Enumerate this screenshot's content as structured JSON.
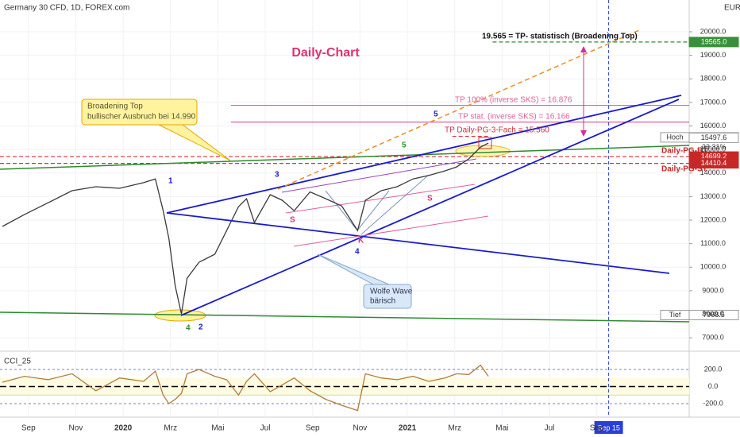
{
  "chart_data": [
    {
      "type": "line",
      "title": "Germany 30 CFD, 1D, FOREX.com",
      "currency": "EUR",
      "subtitle": "Daily-Chart",
      "x": [
        -0.1,
        0.83,
        1.84,
        2.84,
        3.85,
        4.85,
        5.86,
        6.36,
        6.69,
        6.93,
        7.2,
        7.46,
        7.7,
        8.2,
        8.87,
        9.37,
        9.87,
        10.21,
        10.54,
        11.21,
        11.72,
        12.22,
        12.89,
        13.56,
        14.23,
        14.9,
        15.23,
        15.9,
        16.57,
        17.24,
        17.91,
        18.58,
        19.08,
        19.59,
        20.09,
        20.42
      ],
      "values": [
        11730,
        12235,
        12740,
        13250,
        13420,
        13350,
        13590,
        13750,
        12400,
        11220,
        9200,
        8015,
        9530,
        10210,
        10550,
        11560,
        12570,
        12910,
        11900,
        13080,
        12840,
        12400,
        13200,
        12910,
        12600,
        11560,
        12840,
        13250,
        13420,
        13750,
        13900,
        14090,
        14260,
        14600,
        15100,
        15270
      ],
      "color": "#3a3a3a",
      "xlim": [
        -0.2,
        28.9
      ],
      "xticks": [
        {
          "value": 1,
          "label": "Sep"
        },
        {
          "value": 3,
          "label": "Nov"
        },
        {
          "value": 5,
          "label": "2020"
        },
        {
          "value": 7,
          "label": "Mrz"
        },
        {
          "value": 9,
          "label": "Mai"
        },
        {
          "value": 11,
          "label": "Jul"
        },
        {
          "value": 13,
          "label": "Sep"
        },
        {
          "value": 15,
          "label": "Nov"
        },
        {
          "value": 17,
          "label": "2021"
        },
        {
          "value": 19,
          "label": "Mrz"
        },
        {
          "value": 21,
          "label": "Mai"
        },
        {
          "value": 23,
          "label": "Jul"
        },
        {
          "value": 25,
          "label": "Sep"
        }
      ],
      "ylim": [
        6500,
        21350
      ],
      "yticks": [
        {
          "value": 7000,
          "label": "7000.0"
        },
        {
          "value": 8000,
          "label": "8000.0"
        },
        {
          "value": 9000,
          "label": "9000.0"
        },
        {
          "value": 10000,
          "label": "10000.0"
        },
        {
          "value": 11000,
          "label": "11000.0"
        },
        {
          "value": 12000,
          "label": "12000.0"
        },
        {
          "value": 13000,
          "label": "13000.0"
        },
        {
          "value": 14000,
          "label": "14000.0"
        },
        {
          "value": 15000,
          "label": "15000.0"
        },
        {
          "value": 16000,
          "label": "16000.0"
        },
        {
          "value": 17000,
          "label": "17000.0"
        },
        {
          "value": 18000,
          "label": "18000.0"
        },
        {
          "value": 19000,
          "label": "19000.0"
        },
        {
          "value": 20000,
          "label": "20000.0"
        }
      ],
      "grid": true,
      "levels": [
        {
          "value": 19565,
          "color": "#2e8b2e",
          "dash": true,
          "x_from": 20.6
        },
        {
          "value": 16876,
          "color": "#e0609a",
          "dash": false,
          "x_from": 9.55
        },
        {
          "value": 16166,
          "color": "#e0609a",
          "dash": false,
          "x_from": 9.55
        },
        {
          "value": 15560,
          "color": "#d0303a",
          "dash": true,
          "x_from": 18.9,
          "x_to": 20.4
        },
        {
          "value": 14699.2,
          "color": "#d0303a",
          "dash": true,
          "x_from": -0.2
        },
        {
          "value": 14410.4,
          "color": "#d0303a",
          "dash": true,
          "x_from": -0.2
        }
      ],
      "badges": [
        {
          "value": 19565,
          "label": "19565.0",
          "color": "#3a8f3a"
        },
        {
          "value": 15515.2,
          "label": "15515.2",
          "tag": "Hoch",
          "color": "#ffffff"
        },
        {
          "value": 15497.6,
          "label": "15497.6",
          "color": "#ffffff"
        },
        {
          "value": 14699.2,
          "label": "14699.2",
          "color": "#c62828"
        },
        {
          "value": 14410.4,
          "label": "14410.4",
          "color": "#c62828"
        },
        {
          "value": 7968.5,
          "label": "7968.5",
          "tag": "Tief",
          "color": "#ffffff"
        }
      ],
      "change_label": "33.31%",
      "marker": {
        "value": 25.5,
        "label": "Sep 15"
      },
      "annotations": {
        "tp_stat": "19.565 = TP- statistisch (Broadening Top)",
        "broadening": [
          "Broadening Top",
          "bullischer Ausbruch bei 14.990"
        ],
        "tp_100": "TP 100% (inverse SKS) = 16.876",
        "tp_stat_sks": "TP stat. (inverse SKS) = 16.166",
        "tp_daily": "TP Daily-PG-3-Fach = 15.560",
        "pg_bt": "Daily-PG-BT",
        "pg_st": "Daily-PG-ST",
        "wolfe": [
          "Wolfe Wave",
          "bärisch"
        ],
        "waves": [
          "1",
          "2",
          "3",
          "4",
          "5",
          "4",
          "5",
          "K",
          "S",
          "S"
        ]
      }
    },
    {
      "type": "line",
      "title": "CCI_25",
      "x": [
        -0.1,
        0.83,
        1.84,
        2.84,
        3.85,
        4.85,
        5.86,
        6.36,
        6.69,
        6.93,
        7.2,
        7.46,
        7.7,
        8.2,
        8.87,
        9.37,
        9.87,
        10.21,
        10.54,
        11.21,
        11.72,
        12.22,
        12.89,
        13.56,
        14.23,
        14.9,
        15.23,
        15.9,
        16.57,
        17.24,
        17.91,
        18.58,
        19.08,
        19.59,
        20.09,
        20.42
      ],
      "values": [
        50,
        120,
        80,
        150,
        -50,
        100,
        60,
        180,
        -100,
        -200,
        -150,
        -80,
        150,
        200,
        120,
        80,
        -100,
        60,
        150,
        -60,
        20,
        100,
        -50,
        -150,
        -220,
        -280,
        150,
        100,
        80,
        120,
        60,
        100,
        150,
        140,
        250,
        120
      ],
      "color": "#b07d3a",
      "xlim": [
        -0.2,
        28.9
      ],
      "ylim": [
        -312,
        386
      ],
      "yticks": [
        {
          "value": 200,
          "label": "200.0"
        },
        {
          "value": 0,
          "label": "0.0"
        },
        {
          "value": -200,
          "label": "-200.0"
        }
      ],
      "band": [
        -100,
        100
      ]
    }
  ]
}
